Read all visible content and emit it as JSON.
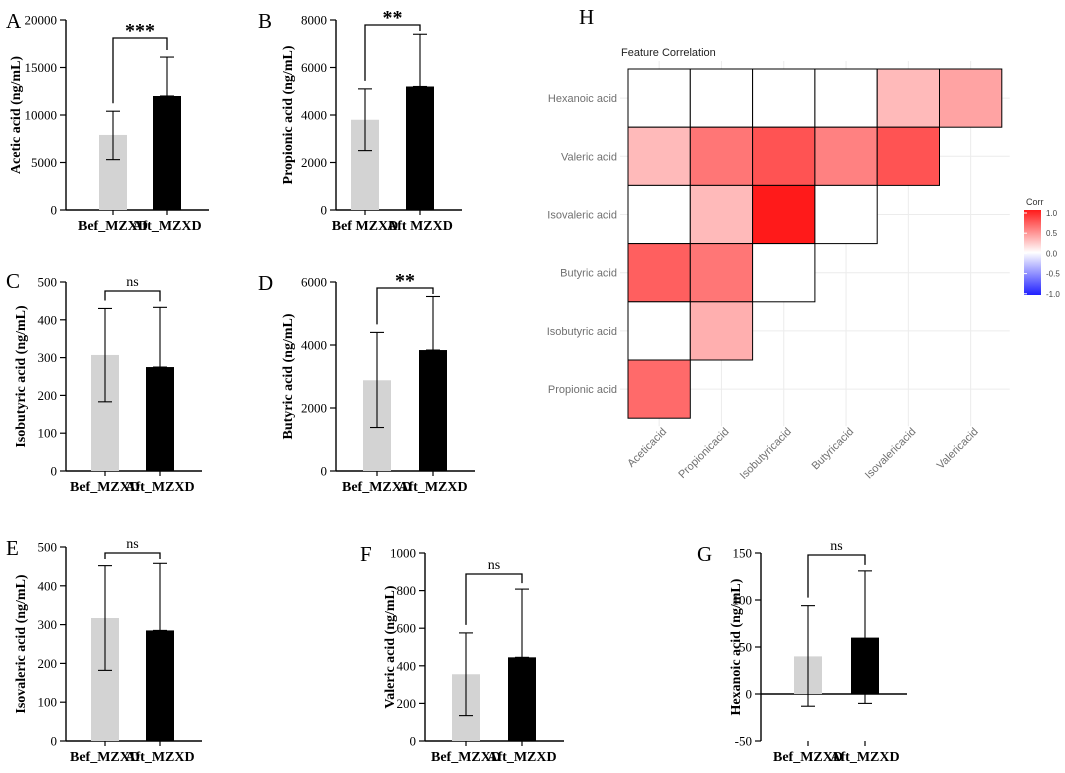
{
  "colors": {
    "bef": "#d3d3d3",
    "aft": "#000000",
    "heat_low": "#2020ff",
    "heat_mid": "#ffffff",
    "heat_high": "#ff1a1a",
    "heat_grid": "#ececec",
    "heat_axis_text": "#707070"
  },
  "chart_data": [
    {
      "id": "A",
      "type": "bar",
      "panel_label": "A",
      "categories": [
        "Bef_MZXD",
        "Aft_MZXD"
      ],
      "values": [
        7900,
        12000
      ],
      "sd_upper": [
        10400,
        16100
      ],
      "sd_lower": [
        5300,
        12000
      ],
      "ylabel": "Acetic acid (ng/mL)",
      "ylim": [
        0,
        20000
      ],
      "yticks": [
        "0",
        "5000",
        "10000",
        "15000",
        "20000"
      ],
      "significance": "***"
    },
    {
      "id": "B",
      "type": "bar",
      "panel_label": "B",
      "categories": [
        "Bef  MZXD",
        "Aft  MZXD"
      ],
      "values": [
        3800,
        5200
      ],
      "sd_upper": [
        5100,
        7400
      ],
      "sd_lower": [
        2500,
        5200
      ],
      "ylabel": "Propionic acid (ng/mL)",
      "ylim": [
        0,
        8000
      ],
      "yticks": [
        "0",
        "2000",
        "4000",
        "6000",
        "8000"
      ],
      "significance": "**"
    },
    {
      "id": "C",
      "type": "bar",
      "panel_label": "C",
      "categories": [
        "Bef_MZXD",
        "Aft_MZXD"
      ],
      "values": [
        307,
        275
      ],
      "sd_upper": [
        430,
        433
      ],
      "sd_lower": [
        183,
        275
      ],
      "ylabel": "Isobutyric acid (ng/mL)",
      "ylim": [
        0,
        500
      ],
      "yticks": [
        "0",
        "100",
        "200",
        "300",
        "400",
        "500"
      ],
      "significance": "ns"
    },
    {
      "id": "D",
      "type": "bar",
      "panel_label": "D",
      "categories": [
        "Bef_MZXD",
        "Aft_MZXD"
      ],
      "values": [
        2880,
        3840
      ],
      "sd_upper": [
        4400,
        5540
      ],
      "sd_lower": [
        1380,
        3840
      ],
      "ylabel": "Butyric acid (ng/mL)",
      "ylim": [
        0,
        6000
      ],
      "yticks": [
        "0",
        "2000",
        "4000",
        "6000"
      ],
      "significance": "**"
    },
    {
      "id": "E",
      "type": "bar",
      "panel_label": "E",
      "categories": [
        "Bef_MZXD",
        "Aft_MZXD"
      ],
      "values": [
        317,
        285
      ],
      "sd_upper": [
        452,
        458
      ],
      "sd_lower": [
        182,
        285
      ],
      "ylabel": "Isovaleric acid (ng/mL)",
      "ylim": [
        0,
        500
      ],
      "yticks": [
        "0",
        "100",
        "200",
        "300",
        "400",
        "500"
      ],
      "significance": "ns"
    },
    {
      "id": "F",
      "type": "bar",
      "panel_label": "F",
      "categories": [
        "Bef_MZXD",
        "Aft_MZXD"
      ],
      "values": [
        355,
        445
      ],
      "sd_upper": [
        575,
        808
      ],
      "sd_lower": [
        135,
        445
      ],
      "ylabel": "Valeric acid (ng/mL)",
      "ylim": [
        0,
        1000
      ],
      "yticks": [
        "0",
        "200",
        "400",
        "600",
        "800",
        "1000"
      ],
      "significance": "ns"
    },
    {
      "id": "G",
      "type": "bar",
      "panel_label": "G",
      "categories": [
        "Bef_MZXD",
        "Aft_MZXD"
      ],
      "values": [
        40,
        60
      ],
      "sd_upper": [
        94,
        131
      ],
      "sd_lower": [
        -13,
        -10
      ],
      "ylabel": "Hexanoic acid (ng/mL)",
      "ylim": [
        -50,
        150
      ],
      "yticks": [
        "-50",
        "0",
        "50",
        "100",
        "150"
      ],
      "significance": "ns"
    },
    {
      "id": "H",
      "type": "heatmap",
      "panel_label": "H",
      "title": "Feature Correlation",
      "x_labels": [
        "Aceticacid",
        "Propionicacid",
        "Isobutyricacid",
        "Butyricacid",
        "Isovalericacid",
        "Valericacid"
      ],
      "y_labels": [
        "Hexanoic acid",
        "Valeric acid",
        "Isovaleric acid",
        "Butyric acid",
        "Isobutyric acid",
        "Propionic acid"
      ],
      "values": [
        [
          0.0,
          0.0,
          0.0,
          0.0,
          0.3,
          0.4
        ],
        [
          0.3,
          0.6,
          0.75,
          0.55,
          0.75,
          null
        ],
        [
          0.0,
          0.3,
          1.0,
          0.0,
          null,
          null
        ],
        [
          0.7,
          0.6,
          0.0,
          null,
          null,
          null
        ],
        [
          0.0,
          0.35,
          null,
          null,
          null,
          null
        ],
        [
          0.65,
          null,
          null,
          null,
          null,
          null
        ]
      ],
      "legend_title": "Corr",
      "legend_ticks": [
        "1.0",
        "0.5",
        "0.0",
        "-0.5",
        "-1.0"
      ],
      "range": [
        -1,
        1
      ]
    }
  ]
}
